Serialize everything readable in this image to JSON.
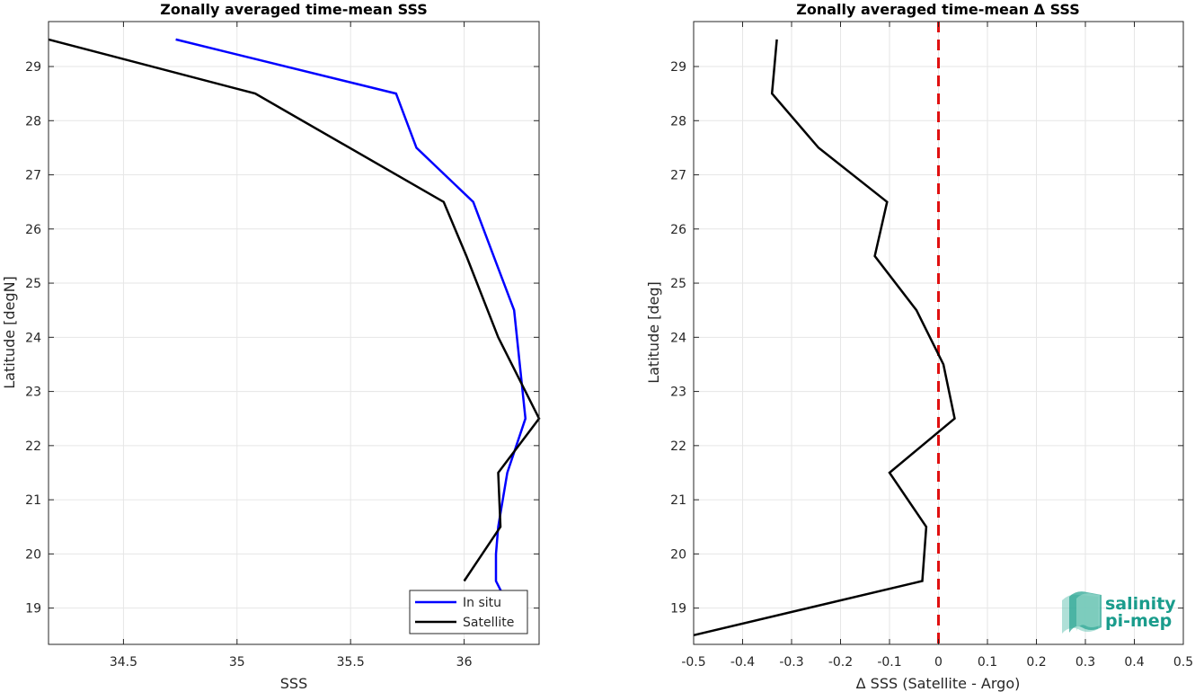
{
  "chart_data": [
    {
      "type": "line",
      "title": "Zonally averaged time-mean SSS",
      "xlabel": "SSS",
      "ylabel": "Latitude [degN]",
      "xlim": [
        34.17,
        36.33
      ],
      "ylim": [
        18.33,
        29.83
      ],
      "xticks": [
        34.5,
        35,
        35.5,
        36
      ],
      "xtick_labels": [
        "34.5",
        "35",
        "35.5",
        "36"
      ],
      "yticks": [
        19,
        20,
        21,
        22,
        23,
        24,
        25,
        26,
        27,
        28,
        29
      ],
      "grid": true,
      "legend": {
        "placement": "bottom-right",
        "entries": [
          "In situ",
          "Satellite"
        ]
      },
      "series": [
        {
          "name": "In situ",
          "color": "#0000ff",
          "x": [
            34.73,
            35.7,
            35.79,
            36.04,
            36.13,
            36.22,
            36.27,
            36.19,
            36.15,
            36.14,
            36.14,
            36.17
          ],
          "y": [
            29.5,
            28.5,
            27.5,
            26.5,
            25.5,
            24.5,
            22.5,
            21.5,
            20.5,
            20.0,
            19.5,
            19.25
          ]
        },
        {
          "name": "Satellite",
          "color": "#000000",
          "x": [
            34.17,
            35.08,
            35.91,
            36.01,
            36.15,
            36.33,
            36.15,
            36.16,
            36.0
          ],
          "y": [
            29.5,
            28.5,
            26.5,
            25.5,
            24.0,
            22.5,
            21.5,
            20.5,
            19.5
          ]
        }
      ]
    },
    {
      "type": "line",
      "title": "Zonally averaged time-mean Δ SSS",
      "xlabel": "Δ SSS (Satellite - Argo)",
      "ylabel": "Latitude [deg]",
      "xlim": [
        -0.5,
        0.5
      ],
      "ylim": [
        18.33,
        29.83
      ],
      "xticks": [
        -0.5,
        -0.4,
        -0.3,
        -0.2,
        -0.1,
        0,
        0.1,
        0.2,
        0.3,
        0.4,
        0.5
      ],
      "xtick_labels": [
        "-0.5",
        "-0.4",
        "-0.3",
        "-0.2",
        "-0.1",
        "0",
        "0.1",
        "0.2",
        "0.3",
        "0.4",
        "0.5"
      ],
      "yticks": [
        19,
        20,
        21,
        22,
        23,
        24,
        25,
        26,
        27,
        28,
        29
      ],
      "grid": true,
      "reference_line": {
        "x": 0,
        "color": "#e01010",
        "style": "dashed"
      },
      "series": [
        {
          "color": "#000000",
          "x": [
            -0.33,
            -0.34,
            -0.245,
            -0.105,
            -0.13,
            -0.045,
            0.01,
            0.033,
            -0.1,
            -0.025,
            -0.033,
            -0.5
          ],
          "y": [
            29.5,
            28.5,
            27.5,
            26.5,
            25.5,
            24.5,
            23.5,
            22.5,
            21.5,
            20.5,
            19.5,
            18.5
          ]
        }
      ]
    }
  ],
  "logo": {
    "line1": "salinity",
    "line2": "pi-mep",
    "color": "#1a9c8c"
  }
}
